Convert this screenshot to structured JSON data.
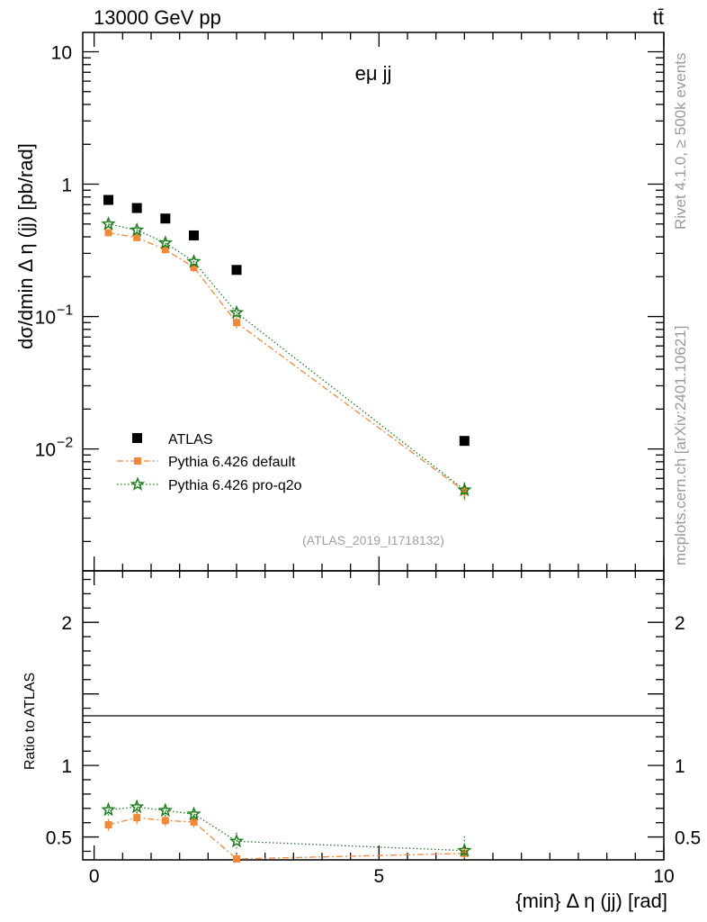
{
  "header": {
    "left": "13000 GeV pp",
    "right": "tt̄"
  },
  "side_labels": {
    "rivet": "Rivet 4.1.0, ≥ 500k events",
    "mcplots": "mcplots.cern.ch [arXiv:2401.10621]"
  },
  "colors": {
    "data": "#000000",
    "pythia_default": "#f0883a",
    "pythia_proq2o": "#1e7d1e"
  },
  "chart_data": [
    {
      "type": "scatter",
      "panel": "main",
      "title": "eμ jj",
      "ylabel": "dσ/dmin Δ η (jj) [pb/rad]",
      "yscale": "log",
      "ylim": [
        0.0012,
        14
      ],
      "xlim": [
        -0.2,
        10
      ],
      "y_ticks": [
        {
          "value": 10,
          "label": "10"
        },
        {
          "value": 1,
          "label": "1"
        },
        {
          "value": 0.1,
          "base": "10",
          "exp": "−1"
        },
        {
          "value": 0.01,
          "base": "10",
          "exp": "−2"
        }
      ],
      "reference": "(ATLAS_2019_I1718132)",
      "legend": [
        "ATLAS",
        "Pythia 6.426 default",
        "Pythia 6.426 pro-q2o"
      ],
      "series": [
        {
          "name": "ATLAS",
          "x": [
            0.25,
            0.75,
            1.25,
            1.75,
            2.5,
            6.5
          ],
          "values": [
            0.76,
            0.66,
            0.55,
            0.41,
            0.225,
            0.0115
          ],
          "err_lo": [
            0,
            0,
            0,
            0,
            0,
            0
          ],
          "err_hi": [
            0,
            0,
            0,
            0,
            0,
            0
          ]
        },
        {
          "name": "Pythia 6.426 default",
          "x": [
            0.25,
            0.75,
            1.25,
            1.75,
            2.5,
            6.5
          ],
          "values": [
            0.43,
            0.395,
            0.32,
            0.235,
            0.09,
            0.0048
          ],
          "err_lo": [
            0.025,
            0.02,
            0.02,
            0.018,
            0.009,
            0.0007
          ],
          "err_hi": [
            0.025,
            0.02,
            0.02,
            0.018,
            0.009,
            0.0007
          ]
        },
        {
          "name": "Pythia 6.426 pro-q2o",
          "x": [
            0.25,
            0.75,
            1.25,
            1.75,
            2.5,
            6.5
          ],
          "values": [
            0.5,
            0.45,
            0.36,
            0.26,
            0.107,
            0.0049
          ],
          "err_lo": [
            0.025,
            0.02,
            0.02,
            0.018,
            0.009,
            0.0007
          ],
          "err_hi": [
            0.025,
            0.02,
            0.02,
            0.018,
            0.009,
            0.0007
          ]
        }
      ]
    },
    {
      "type": "line",
      "panel": "ratio",
      "ylabel": "Ratio to ATLAS",
      "xlabel": "{min} Δ η (jj) [rad]",
      "ylim": [
        0.34,
        2.36
      ],
      "xlim": [
        -0.2,
        10
      ],
      "y_ticks": [
        {
          "value": 2,
          "label": "2"
        },
        {
          "value": 1,
          "label": "1"
        },
        {
          "value": 0.5,
          "label": "0.5"
        }
      ],
      "x_ticks": [
        {
          "value": 0,
          "label": "0"
        },
        {
          "value": 5,
          "label": "5"
        },
        {
          "value": 10,
          "label": "10"
        }
      ],
      "series": [
        {
          "name": "Pythia 6.426 default",
          "x": [
            0.25,
            0.75,
            1.25,
            1.75,
            2.5,
            6.5
          ],
          "values": [
            0.585,
            0.635,
            0.615,
            0.605,
            0.345,
            0.385
          ],
          "err_lo": [
            0.04,
            0.045,
            0.04,
            0.04,
            0.04,
            0.06
          ],
          "err_hi": [
            0.04,
            0.045,
            0.04,
            0.04,
            0.04,
            0.06
          ]
        },
        {
          "name": "Pythia 6.426 pro-q2o",
          "x": [
            0.25,
            0.75,
            1.25,
            1.75,
            2.5,
            6.5
          ],
          "values": [
            0.69,
            0.71,
            0.685,
            0.66,
            0.47,
            0.405
          ],
          "err_lo": [
            0.045,
            0.045,
            0.045,
            0.045,
            0.06,
            0.1
          ],
          "err_hi": [
            0.045,
            0.045,
            0.045,
            0.045,
            0.06,
            0.1
          ]
        }
      ]
    }
  ]
}
